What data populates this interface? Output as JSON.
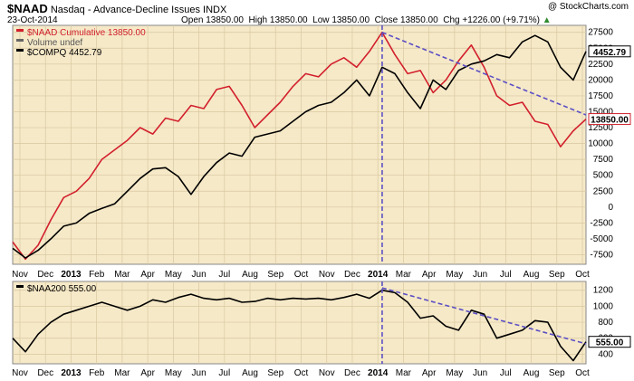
{
  "header": {
    "symbol": "$NAAD",
    "description": "Nasdaq - Advance-Decline Issues",
    "exchange": "INDX",
    "watermark": "@ StockCharts.com",
    "date": "23-Oct-2014",
    "open_label": "Open",
    "open": "13850.00",
    "high_label": "High",
    "high": "13850.00",
    "low_label": "Low",
    "low": "13850.00",
    "close_label": "Close",
    "close": "13850.00",
    "chg_label": "Chg",
    "chg": "+1226.00 (+9.71%)",
    "chg_arrow": "▲"
  },
  "colors": {
    "naad": "#d2202c",
    "compq": "#000000",
    "naa200": "#000000",
    "trend": "#5b4fc4",
    "panel_bg": "#f6e9c8"
  },
  "chart_data": [
    {
      "type": "line",
      "panel": "main",
      "legend": [
        "$NAAD Cumulative 13850.00",
        "Volume undef",
        "$COMPQ 4452.79"
      ],
      "y_ticks": [
        -7500,
        -5000,
        -2500,
        0,
        2500,
        5000,
        7500,
        10000,
        12500,
        15000,
        17500,
        20000,
        22500,
        25000,
        27500
      ],
      "ylim": [
        -9000,
        28600
      ],
      "x_labels": [
        "Nov",
        "Dec",
        "2013",
        "Feb",
        "Mar",
        "Apr",
        "May",
        "Jun",
        "Jul",
        "Aug",
        "Sep",
        "Oct",
        "Nov",
        "Dec",
        "2014",
        "Mar",
        "Apr",
        "May",
        "Jun",
        "Jul",
        "Aug",
        "Sep",
        "Oct"
      ],
      "bold_labels": [
        "2013",
        "2014"
      ],
      "last_values": {
        "compq": "4452.79",
        "naad": "13850.00"
      },
      "series": [
        {
          "name": "$NAAD Cumulative",
          "color": "#d2202c",
          "points": [
            [
              0,
              -5500
            ],
            [
              1,
              -8200
            ],
            [
              2,
              -6000
            ],
            [
              3,
              -2000
            ],
            [
              4,
              1500
            ],
            [
              5,
              2500
            ],
            [
              6,
              4500
            ],
            [
              7,
              7500
            ],
            [
              8,
              9000
            ],
            [
              9,
              10500
            ],
            [
              10,
              12500
            ],
            [
              11,
              11500
            ],
            [
              12,
              14000
            ],
            [
              13,
              13500
            ],
            [
              14,
              16000
            ],
            [
              15,
              15500
            ],
            [
              16,
              18500
            ],
            [
              17,
              19000
            ],
            [
              18,
              16000
            ],
            [
              19,
              12500
            ],
            [
              20,
              14500
            ],
            [
              21,
              16500
            ],
            [
              22,
              19000
            ],
            [
              23,
              21000
            ],
            [
              24,
              20500
            ],
            [
              25,
              22500
            ],
            [
              26,
              23500
            ],
            [
              27,
              22000
            ],
            [
              28,
              24500
            ],
            [
              29,
              27500
            ],
            [
              30,
              24000
            ],
            [
              31,
              21000
            ],
            [
              32,
              21500
            ],
            [
              33,
              18000
            ],
            [
              34,
              20000
            ],
            [
              35,
              23000
            ],
            [
              36,
              25500
            ],
            [
              37,
              22000
            ],
            [
              38,
              17500
            ],
            [
              39,
              16000
            ],
            [
              40,
              16500
            ],
            [
              41,
              13500
            ],
            [
              42,
              13000
            ],
            [
              43,
              9500
            ],
            [
              44,
              12000
            ],
            [
              45,
              13850
            ]
          ]
        },
        {
          "name": "$COMPQ",
          "color": "#000000",
          "points": [
            [
              0,
              -6500
            ],
            [
              1,
              -8000
            ],
            [
              2,
              -6800
            ],
            [
              3,
              -5000
            ],
            [
              4,
              -3000
            ],
            [
              5,
              -2500
            ],
            [
              6,
              -1000
            ],
            [
              7,
              -200
            ],
            [
              8,
              500
            ],
            [
              9,
              2500
            ],
            [
              10,
              4500
            ],
            [
              11,
              6000
            ],
            [
              12,
              6200
            ],
            [
              13,
              4800
            ],
            [
              14,
              2000
            ],
            [
              15,
              4800
            ],
            [
              16,
              7000
            ],
            [
              17,
              8500
            ],
            [
              18,
              8000
            ],
            [
              19,
              11000
            ],
            [
              20,
              11500
            ],
            [
              21,
              12000
            ],
            [
              22,
              13500
            ],
            [
              23,
              15000
            ],
            [
              24,
              16000
            ],
            [
              25,
              16500
            ],
            [
              26,
              18000
            ],
            [
              27,
              20000
            ],
            [
              28,
              17500
            ],
            [
              29,
              22000
            ],
            [
              30,
              21000
            ],
            [
              31,
              18000
            ],
            [
              32,
              15500
            ],
            [
              33,
              20000
            ],
            [
              34,
              18500
            ],
            [
              35,
              21500
            ],
            [
              36,
              22500
            ],
            [
              37,
              23000
            ],
            [
              38,
              24000
            ],
            [
              39,
              23500
            ],
            [
              40,
              26000
            ],
            [
              41,
              27000
            ],
            [
              42,
              26000
            ],
            [
              43,
              22000
            ],
            [
              44,
              20000
            ],
            [
              45,
              24500
            ]
          ]
        },
        {
          "name": "trendline",
          "color": "#5b4fc4",
          "points": [
            [
              29,
              27500
            ],
            [
              45,
              14500
            ]
          ]
        }
      ]
    },
    {
      "type": "line",
      "panel": "lower",
      "legend": [
        "$NAA200 555.00"
      ],
      "y_ticks": [
        400,
        600,
        800,
        1000,
        1200
      ],
      "ylim": [
        280,
        1310
      ],
      "x_labels": [
        "Nov",
        "Dec",
        "2013",
        "Feb",
        "Mar",
        "Apr",
        "May",
        "Jun",
        "Jul",
        "Aug",
        "Sep",
        "Oct",
        "Nov",
        "Dec",
        "2014",
        "Mar",
        "Apr",
        "May",
        "Jun",
        "Jul",
        "Aug",
        "Sep",
        "Oct"
      ],
      "bold_labels": [
        "2013",
        "2014"
      ],
      "last_values": {
        "naa200": "555.00"
      },
      "series": [
        {
          "name": "$NAA200",
          "color": "#000000",
          "points": [
            [
              0,
              600
            ],
            [
              1,
              430
            ],
            [
              2,
              650
            ],
            [
              3,
              800
            ],
            [
              4,
              900
            ],
            [
              5,
              950
            ],
            [
              6,
              1000
            ],
            [
              7,
              1050
            ],
            [
              8,
              1000
            ],
            [
              9,
              950
            ],
            [
              10,
              1000
            ],
            [
              11,
              1080
            ],
            [
              12,
              1050
            ],
            [
              13,
              1110
            ],
            [
              14,
              1150
            ],
            [
              15,
              1100
            ],
            [
              16,
              1080
            ],
            [
              17,
              1100
            ],
            [
              18,
              1050
            ],
            [
              19,
              1060
            ],
            [
              20,
              1100
            ],
            [
              21,
              1080
            ],
            [
              22,
              1100
            ],
            [
              23,
              1090
            ],
            [
              24,
              1100
            ],
            [
              25,
              1080
            ],
            [
              26,
              1110
            ],
            [
              27,
              1150
            ],
            [
              28,
              1100
            ],
            [
              29,
              1200
            ],
            [
              30,
              1170
            ],
            [
              31,
              1050
            ],
            [
              32,
              850
            ],
            [
              33,
              880
            ],
            [
              34,
              750
            ],
            [
              35,
              700
            ],
            [
              36,
              950
            ],
            [
              37,
              900
            ],
            [
              38,
              600
            ],
            [
              39,
              650
            ],
            [
              40,
              700
            ],
            [
              41,
              820
            ],
            [
              42,
              800
            ],
            [
              43,
              500
            ],
            [
              44,
              320
            ],
            [
              45,
              555
            ]
          ]
        },
        {
          "name": "trendline",
          "color": "#5b4fc4",
          "points": [
            [
              29,
              1230
            ],
            [
              45,
              530
            ]
          ]
        }
      ]
    }
  ]
}
